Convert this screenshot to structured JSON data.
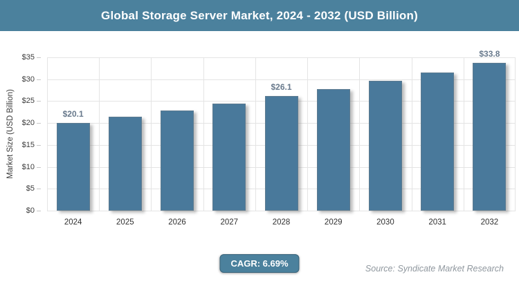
{
  "header": {
    "title": "Global Storage Server Market, 2024 - 2032 (USD Billion)"
  },
  "theme": {
    "accent_color": "#4b819d",
    "bar_color": "#49799b",
    "grid_color": "#e4e4e4",
    "data_label_color": "#68798c",
    "source_text_color": "#8f979e"
  },
  "chart_data": {
    "type": "bar",
    "title": "Global Storage Server Market, 2024 - 2032 (USD Billion)",
    "categories": [
      "2024",
      "2025",
      "2026",
      "2027",
      "2028",
      "2029",
      "2030",
      "2031",
      "2032"
    ],
    "values": [
      20.1,
      21.4,
      22.9,
      24.4,
      26.1,
      27.8,
      29.6,
      31.6,
      33.8
    ],
    "data_labels": [
      "$20.1",
      null,
      null,
      null,
      "$26.1",
      null,
      null,
      null,
      "$33.8"
    ],
    "xlabel": "",
    "ylabel": "Market Size (USD Billion)",
    "ylim": [
      0,
      35
    ],
    "yticks": [
      {
        "value": 0,
        "label": "$0"
      },
      {
        "value": 5,
        "label": "$5"
      },
      {
        "value": 10,
        "label": "$10"
      },
      {
        "value": 15,
        "label": "$15"
      },
      {
        "value": 20,
        "label": "$20"
      },
      {
        "value": 25,
        "label": "$25"
      },
      {
        "value": 30,
        "label": "$30"
      },
      {
        "value": 35,
        "label": "$35"
      }
    ],
    "grid": true,
    "legend": false
  },
  "footer": {
    "cagr_label": "CAGR: 6.69%",
    "source": "Source: Syndicate Market Research"
  }
}
